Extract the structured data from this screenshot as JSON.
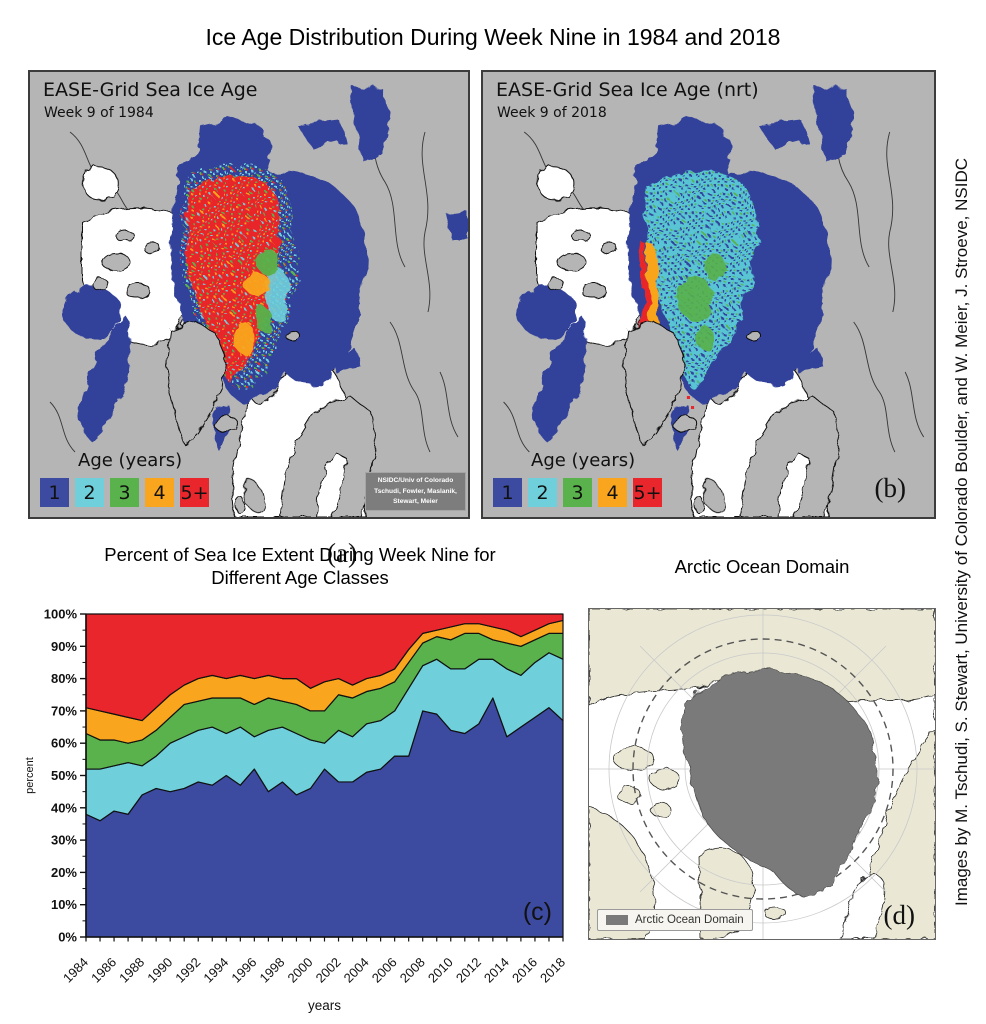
{
  "title": "Ice Age Distribution During Week Nine in 1984 and 2018",
  "vertical_credit": "Images by M. Tschudi, S. Stewart, University of Colorado Boulder, and W. Meier, J. Stroeve, NSIDC",
  "legend": {
    "title": "Age (years)",
    "items": [
      {
        "label": "1",
        "color": "#3c4ba0"
      },
      {
        "label": "2",
        "color": "#6fd0dc"
      },
      {
        "label": "3",
        "color": "#59b24b"
      },
      {
        "label": "4",
        "color": "#f9a51d"
      },
      {
        "label": "5+",
        "color": "#e8262b"
      }
    ]
  },
  "panel_a": {
    "heading": "EASE-Grid Sea Ice Age",
    "subheading": "Week 9 of 1984",
    "letter": "(a)",
    "credit_box": {
      "line1": "NSIDC/Univ of Colorado",
      "line2": "Tschudi, Fowler, Maslanik,",
      "line3": "Stewart, Meier"
    }
  },
  "panel_b": {
    "heading": "EASE-Grid Sea Ice Age (nrt)",
    "subheading": "Week 9 of 2018",
    "letter": "(b)"
  },
  "panel_c": {
    "title_line1": "Percent of Sea Ice Extent During Week Nine for",
    "title_line2": "Different Age Classes",
    "letter": "(c)"
  },
  "panel_d": {
    "title": "Arctic Ocean Domain",
    "letter": "(d)",
    "legend_label": "Arctic Ocean Domain",
    "domain_color": "#7a7a7a",
    "land_color": "#eae8d5"
  },
  "map_colors": {
    "land": "#b5b5b5",
    "ocean": "#ffffff",
    "coastline": "#111111"
  },
  "chart_data": {
    "type": "area",
    "stacked": true,
    "title": "Percent of Sea Ice Extent During Week Nine for Different Age Classes",
    "xlabel": "years",
    "ylabel": "percent",
    "ylim": [
      0,
      100
    ],
    "ytick_step": 10,
    "ytick_minor_step": 5,
    "xtick_label_step": 2,
    "grid": false,
    "legend_position": "none",
    "x": [
      1984,
      1985,
      1986,
      1987,
      1988,
      1989,
      1990,
      1991,
      1992,
      1993,
      1994,
      1995,
      1996,
      1997,
      1998,
      1999,
      2000,
      2001,
      2002,
      2003,
      2004,
      2005,
      2006,
      2007,
      2008,
      2009,
      2010,
      2011,
      2012,
      2013,
      2014,
      2015,
      2016,
      2017,
      2018
    ],
    "series": [
      {
        "name": "1 year",
        "color": "#3c4ba0",
        "values": [
          38,
          36,
          39,
          38,
          44,
          46,
          45,
          46,
          48,
          47,
          50,
          47,
          52,
          45,
          48,
          44,
          46,
          52,
          48,
          48,
          51,
          52,
          56,
          56,
          70,
          69,
          64,
          63,
          66,
          74,
          62,
          65,
          68,
          71,
          67
        ]
      },
      {
        "name": "2 years",
        "color": "#6fd0dc",
        "values": [
          14,
          16,
          14,
          16,
          9,
          10,
          15,
          16,
          16,
          18,
          13,
          18,
          10,
          19,
          17,
          19,
          15,
          8,
          16,
          14,
          15,
          15,
          14,
          21,
          14,
          17,
          19,
          20,
          20,
          12,
          21,
          16,
          17,
          17,
          19
        ]
      },
      {
        "name": "3 years",
        "color": "#59b24b",
        "values": [
          11,
          9,
          8,
          6,
          8,
          8,
          8,
          10,
          9,
          9,
          11,
          9,
          10,
          10,
          8,
          9,
          9,
          10,
          11,
          12,
          10,
          10,
          9,
          8,
          7,
          7,
          9,
          11,
          8,
          6,
          8,
          9,
          7,
          6,
          8
        ]
      },
      {
        "name": "4 years",
        "color": "#f9a51d",
        "values": [
          8,
          9,
          8,
          8,
          6,
          7,
          7,
          6,
          7,
          7,
          6,
          7,
          8,
          7,
          7,
          8,
          7,
          9,
          5,
          4,
          4,
          4,
          4,
          4,
          3,
          2,
          4,
          3,
          3,
          4,
          4,
          3,
          3,
          3,
          4
        ]
      },
      {
        "name": "5+ years",
        "color": "#e8262b",
        "values": [
          29,
          30,
          31,
          32,
          33,
          29,
          25,
          22,
          20,
          19,
          20,
          19,
          20,
          19,
          20,
          20,
          23,
          21,
          20,
          22,
          20,
          19,
          17,
          11,
          6,
          5,
          4,
          3,
          3,
          4,
          5,
          7,
          5,
          3,
          2
        ]
      }
    ]
  }
}
